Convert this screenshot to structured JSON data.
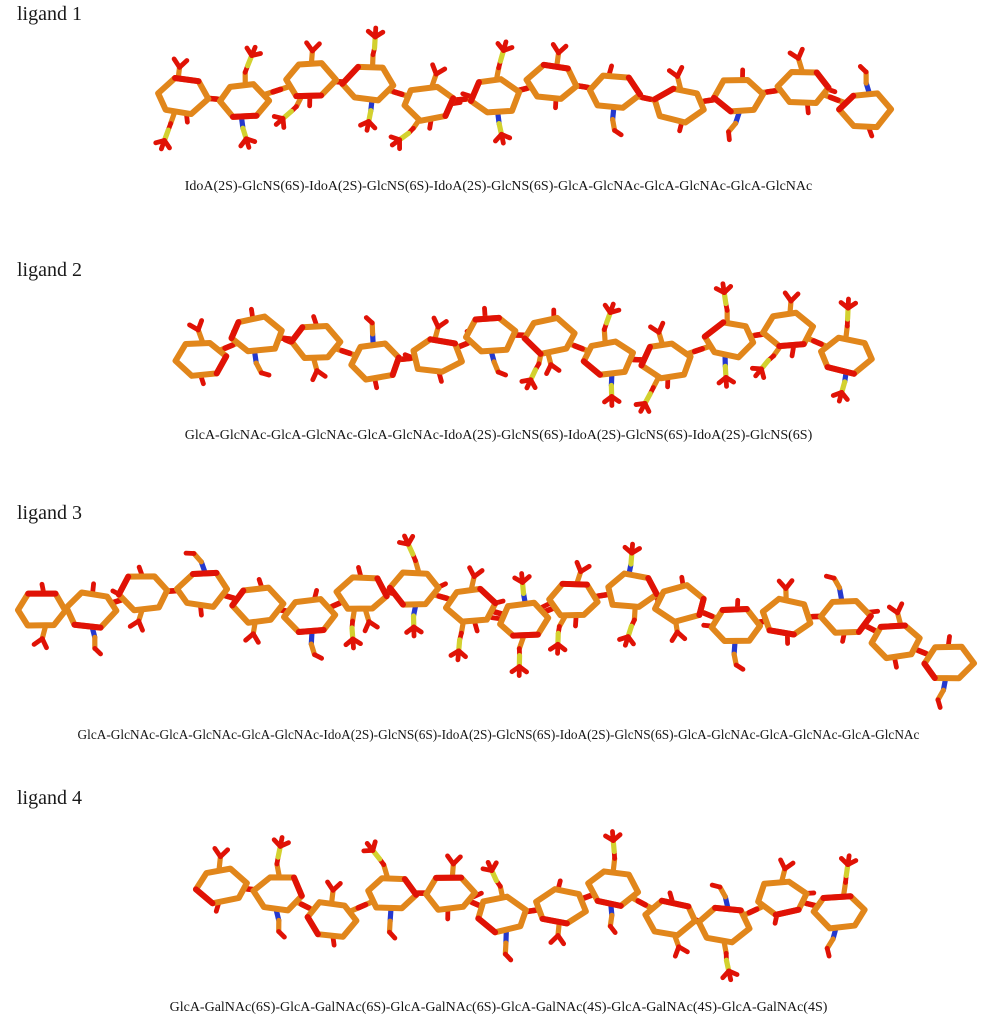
{
  "page": {
    "background": "#ffffff"
  },
  "palette": {
    "carbon_orange": "#E1861B",
    "oxygen_red": "#E01206",
    "sulfur_yellow": "#D3D12F",
    "nitrogen_blue": "#2438CE"
  },
  "ligands": [
    {
      "label": "ligand 1",
      "caption": "IdoA(2S)-GlcNS(6S)-IdoA(2S)-GlcNS(6S)-IdoA(2S)-GlcNS(6S)-GlcA-GlcNAc-GlcA-GlcNAc-GlcA-GlcNAc"
    },
    {
      "label": "ligand 2",
      "caption": "GlcA-GlcNAc-GlcA-GlcNAc-GlcA-GlcNAc-IdoA(2S)-GlcNS(6S)-IdoA(2S)-GlcNS(6S)-IdoA(2S)-GlcNS(6S)"
    },
    {
      "label": "ligand 3",
      "caption": "GlcA-GlcNAc-GlcA-GlcNAc-GlcA-GlcNAc-IdoA(2S)-GlcNS(6S)-IdoA(2S)-GlcNS(6S)-IdoA(2S)-GlcNS(6S)-GlcA-GlcNAc-GlcA-GlcNAc-GlcA-GlcNAc"
    },
    {
      "label": "ligand 4",
      "caption": "GlcA-GalNAc(6S)-GlcA-GalNAc(6S)-GlcA-GalNAc(6S)-GlcA-GalNAc(4S)-GlcA-GalNAc(4S)-GlcA-GalNAc(4S)"
    }
  ]
}
